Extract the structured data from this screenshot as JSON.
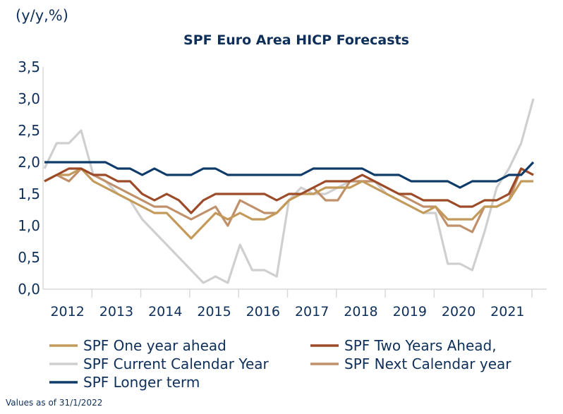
{
  "chart_data": {
    "type": "line",
    "title": "SPF Euro Area HICP Forecasts",
    "unit_label": "(y/y,%)",
    "xlabel": "",
    "ylabel": "(y/y,%)",
    "ylim": [
      0,
      3.5
    ],
    "yticks": [
      "0,0",
      "0,5",
      "1,0",
      "1,5",
      "2,0",
      "2,5",
      "3,0",
      "3,5"
    ],
    "ytick_values": [
      0,
      0.5,
      1.0,
      1.5,
      2.0,
      2.5,
      3.0,
      3.5
    ],
    "xtick_labels": [
      "2012",
      "2013",
      "2014",
      "2015",
      "2016",
      "2017",
      "2018",
      "2019",
      "2020",
      "2021"
    ],
    "x_frequency": "quarterly",
    "x_start": "2012Q1",
    "x_end": "2022Q1",
    "grid": false,
    "legend_position": "bottom",
    "note": "Values as of 31/1/2022",
    "series": [
      {
        "name": "SPF One year ahead",
        "color": "#C49A5A",
        "values": [
          1.7,
          1.8,
          1.8,
          1.9,
          1.7,
          1.6,
          1.5,
          1.4,
          1.3,
          1.2,
          1.2,
          1.0,
          0.8,
          1.0,
          1.2,
          1.1,
          1.2,
          1.1,
          1.1,
          1.2,
          1.4,
          1.5,
          1.5,
          1.6,
          1.6,
          1.6,
          1.7,
          1.6,
          1.5,
          1.4,
          1.3,
          1.2,
          1.3,
          1.1,
          1.1,
          1.1,
          1.3,
          1.3,
          1.4,
          1.7,
          1.7
        ]
      },
      {
        "name": "SPF Two Years Ahead,",
        "color": "#9C4A28",
        "values": [
          1.7,
          1.8,
          1.9,
          1.9,
          1.8,
          1.8,
          1.7,
          1.7,
          1.5,
          1.4,
          1.5,
          1.4,
          1.2,
          1.4,
          1.5,
          1.5,
          1.5,
          1.5,
          1.5,
          1.4,
          1.5,
          1.5,
          1.6,
          1.7,
          1.7,
          1.7,
          1.8,
          1.7,
          1.6,
          1.5,
          1.5,
          1.4,
          1.4,
          1.4,
          1.3,
          1.3,
          1.4,
          1.4,
          1.5,
          1.9,
          1.8
        ]
      },
      {
        "name": "SPF Current Calendar Year",
        "color": "#CFCFCF",
        "values": [
          1.9,
          2.3,
          2.3,
          2.5,
          1.8,
          1.7,
          1.5,
          1.4,
          1.1,
          0.9,
          0.7,
          0.5,
          0.3,
          0.1,
          0.2,
          0.1,
          0.7,
          0.3,
          0.3,
          0.2,
          1.4,
          1.6,
          1.5,
          1.5,
          1.6,
          1.7,
          1.7,
          1.7,
          1.5,
          1.4,
          1.3,
          1.2,
          1.2,
          0.4,
          0.4,
          0.3,
          0.9,
          1.6,
          1.9,
          2.3,
          3.0
        ]
      },
      {
        "name": "SPF Next Calendar year",
        "color": "#C0906A",
        "values": [
          1.7,
          1.8,
          1.7,
          1.9,
          1.8,
          1.7,
          1.6,
          1.5,
          1.4,
          1.3,
          1.3,
          1.2,
          1.1,
          1.2,
          1.3,
          1.0,
          1.4,
          1.3,
          1.2,
          1.2,
          1.4,
          1.5,
          1.6,
          1.4,
          1.4,
          1.7,
          1.7,
          1.7,
          1.6,
          1.5,
          1.4,
          1.3,
          1.3,
          1.0,
          1.0,
          0.9,
          1.3,
          1.3,
          1.4,
          1.9,
          1.8
        ]
      },
      {
        "name": "SPF Longer term",
        "color": "#0E3B6A",
        "values": [
          2.0,
          2.0,
          2.0,
          2.0,
          2.0,
          2.0,
          1.9,
          1.9,
          1.8,
          1.9,
          1.8,
          1.8,
          1.8,
          1.9,
          1.9,
          1.8,
          1.8,
          1.8,
          1.8,
          1.8,
          1.8,
          1.8,
          1.9,
          1.9,
          1.9,
          1.9,
          1.9,
          1.8,
          1.8,
          1.8,
          1.7,
          1.7,
          1.7,
          1.7,
          1.6,
          1.7,
          1.7,
          1.7,
          1.8,
          1.8,
          2.0
        ]
      }
    ]
  }
}
